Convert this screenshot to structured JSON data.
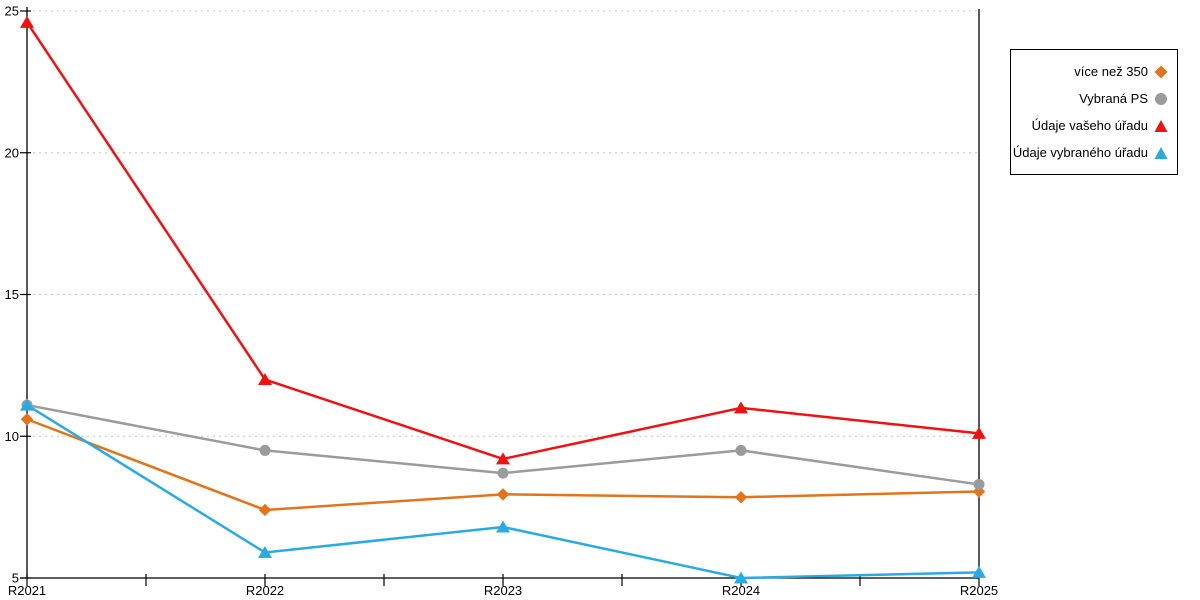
{
  "chart_data": {
    "type": "line",
    "title": "",
    "xlabel": "",
    "ylabel": "",
    "categories": [
      "R2021",
      "R2022",
      "R2023",
      "R2024",
      "R2025"
    ],
    "series": [
      {
        "name": "více než 350",
        "color": "#E2741B",
        "marker": "diamond",
        "values": [
          10.6,
          7.4,
          7.95,
          7.85,
          8.05
        ]
      },
      {
        "name": "Vybraná PS",
        "color": "#9B9B9B",
        "marker": "circle",
        "values": [
          11.1,
          9.5,
          8.7,
          9.5,
          8.3
        ]
      },
      {
        "name": "Údaje vašeho úřadu",
        "color": "#F01111",
        "marker": "triangle",
        "values": [
          24.6,
          12.0,
          9.2,
          11.0,
          10.1
        ]
      },
      {
        "name": "Údaje vybraného úřadu",
        "color": "#29ABE2",
        "marker": "triangle",
        "values": [
          11.1,
          5.9,
          6.8,
          5.0,
          5.2
        ]
      }
    ],
    "ylim": [
      5,
      25
    ],
    "yticks": [
      5,
      10,
      15,
      20,
      25
    ],
    "grid": "horizontal-dashed",
    "gridline_color": "#C3C3C3",
    "axis_color": "#000000",
    "legend_position": "right"
  }
}
